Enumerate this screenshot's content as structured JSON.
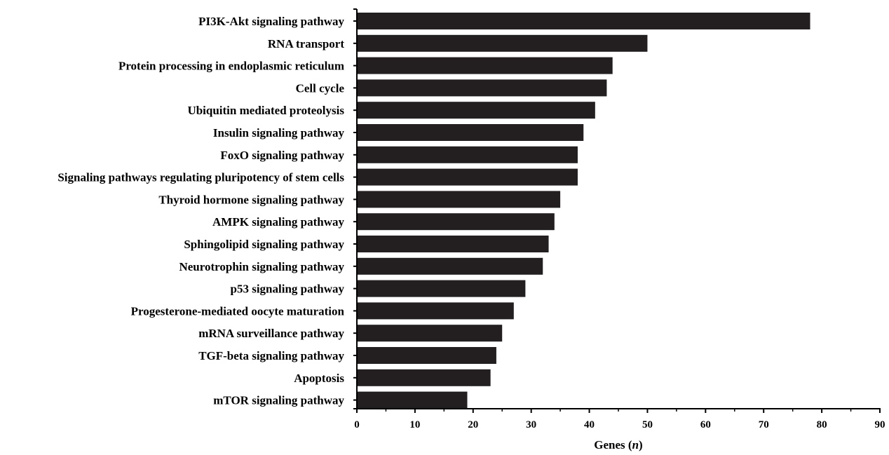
{
  "chart_data": {
    "type": "bar",
    "orientation": "horizontal",
    "title": "",
    "xlabel": "Genes (n)",
    "xlabel_prefix": "Genes (",
    "xlabel_italic": "n",
    "xlabel_suffix": ")",
    "ylabel": "",
    "xlim": [
      0,
      90
    ],
    "xticks": [
      0,
      10,
      20,
      30,
      40,
      50,
      60,
      70,
      80,
      90
    ],
    "grid": false,
    "bar_color": "#231f20",
    "categories": [
      "PI3K-Akt signaling pathway",
      "RNA transport",
      "Protein processing in endoplasmic reticulum",
      "Cell cycle",
      "Ubiquitin mediated proteolysis",
      "Insulin signaling pathway",
      "FoxO signaling pathway",
      "Signaling pathways regulating pluripotency of stem cells",
      "Thyroid hormone signaling pathway",
      "AMPK signaling pathway",
      "Sphingolipid signaling pathway",
      "Neurotrophin signaling pathway",
      "p53 signaling pathway",
      "Progesterone-mediated oocyte maturation",
      "mRNA surveillance pathway",
      "TGF-beta signaling pathway",
      "Apoptosis",
      "mTOR signaling pathway"
    ],
    "values": [
      78,
      50,
      44,
      43,
      41,
      39,
      38,
      38,
      35,
      34,
      33,
      32,
      29,
      27,
      25,
      24,
      23,
      19
    ]
  }
}
